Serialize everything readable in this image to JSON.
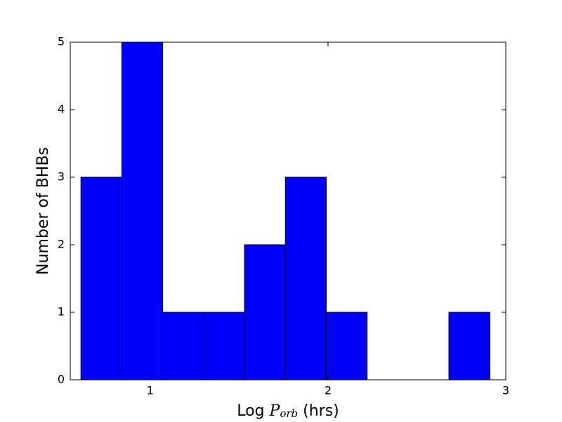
{
  "chart_data": {
    "type": "histogram",
    "xlabel": {
      "text": "Log",
      "symbol": "P",
      "subscript": "orb",
      "unit": "(hrs)"
    },
    "ylabel": "Number of BHBs",
    "bins": [
      0.61,
      0.84,
      1.07,
      1.3,
      1.53,
      1.76,
      1.99,
      2.22,
      2.45,
      2.68,
      2.91
    ],
    "values": [
      3,
      5,
      1,
      1,
      2,
      3,
      1,
      0,
      0,
      1
    ],
    "color": "#0000ff",
    "edgecolor": "#000000",
    "xlim": [
      0.55,
      3
    ],
    "xticks": [
      1,
      2,
      3
    ],
    "ylim": [
      0,
      5
    ],
    "yticks": [
      0,
      1,
      2,
      3,
      4,
      5
    ]
  }
}
